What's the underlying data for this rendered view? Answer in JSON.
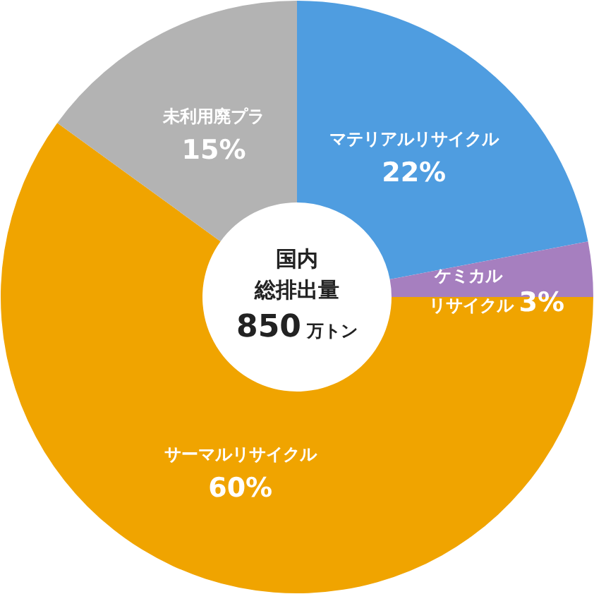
{
  "chart_data": {
    "type": "donut",
    "title": "国内",
    "subtitle": "総排出量",
    "annotations": [
      "850 万トン"
    ],
    "categories": [
      "マテリアルリサイクル",
      "ケミカルリサイクル",
      "サーマルリサイクル",
      "未利用廃プラ"
    ],
    "values": [
      22,
      3,
      60,
      15
    ],
    "colors": [
      "#4f9de0",
      "#a67fbf",
      "#f0a400",
      "#b3b3b3"
    ],
    "value_labels": [
      "22%",
      "3%",
      "60%",
      "15%"
    ]
  }
}
